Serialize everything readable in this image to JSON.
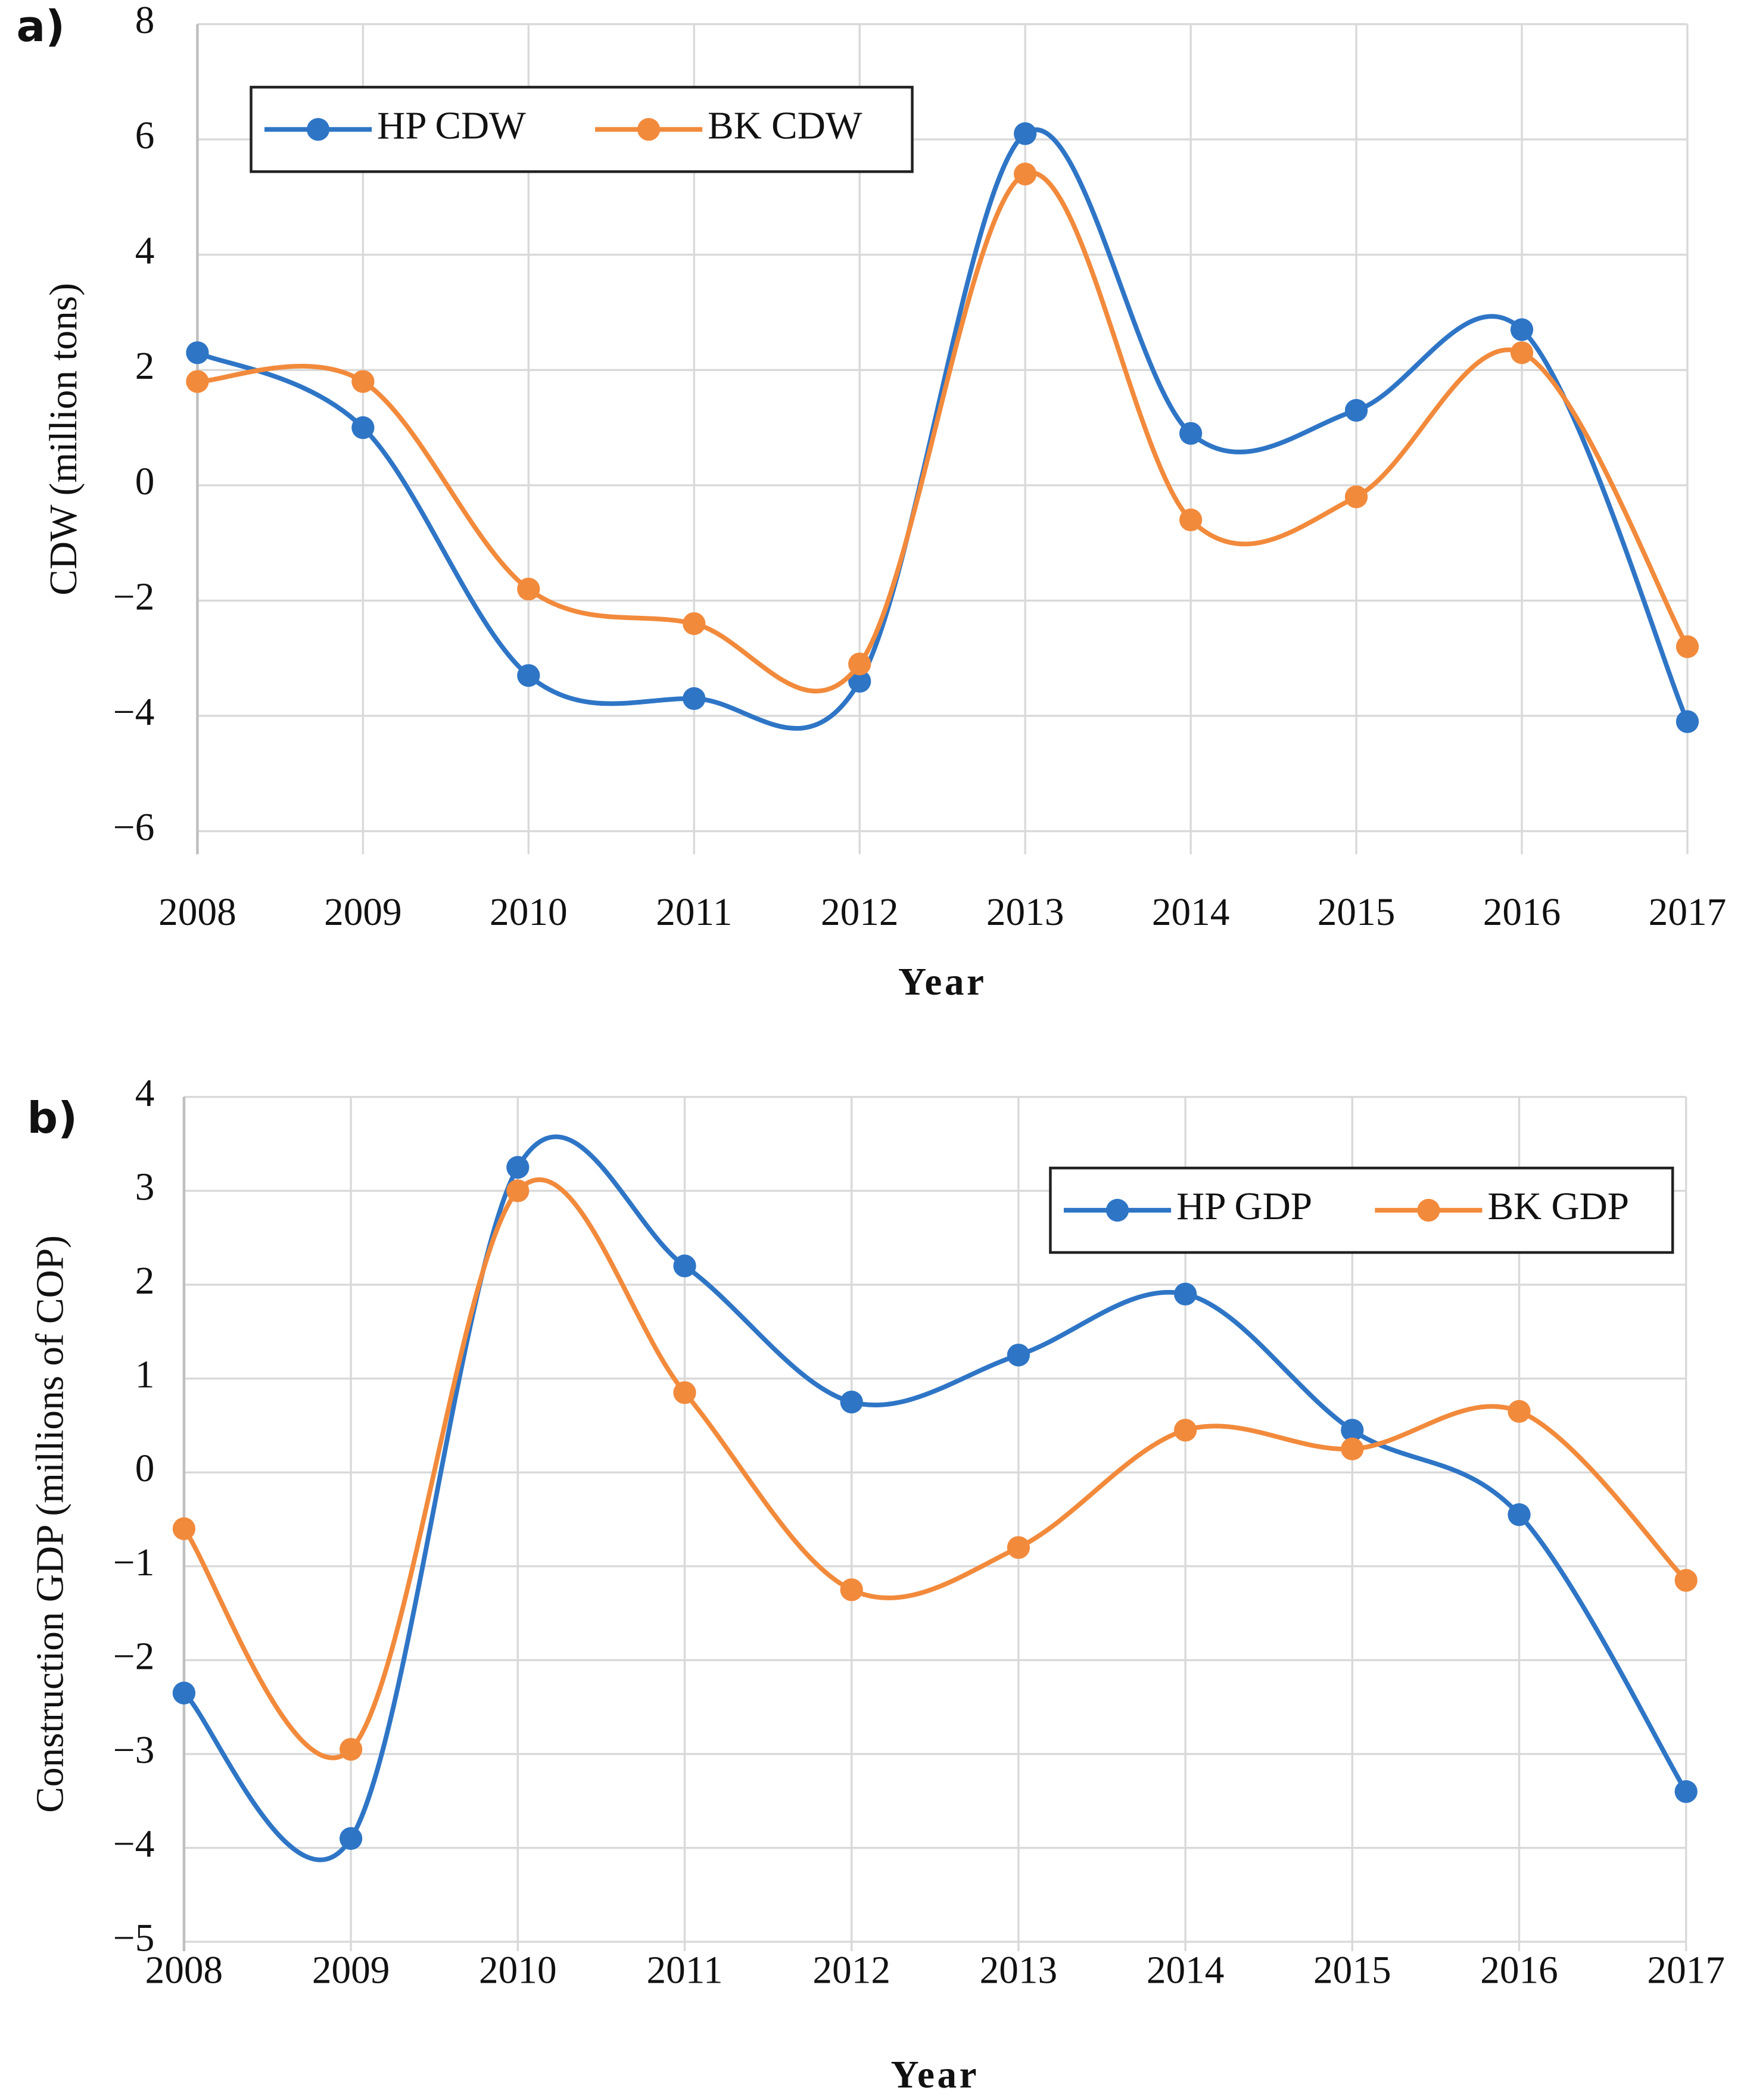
{
  "chart_data": [
    {
      "type": "line",
      "panel_label": "a)",
      "x_label": "Year",
      "y_label": "CDW (million tons)",
      "categories": [
        "2008",
        "2009",
        "2010",
        "2011",
        "2012",
        "2013",
        "2014",
        "2015",
        "2016",
        "2017"
      ],
      "series": [
        {
          "name": "HP CDW",
          "color": "#2e75c6",
          "values": [
            2.3,
            1.0,
            -3.3,
            -3.7,
            -3.4,
            6.1,
            0.9,
            1.3,
            2.7,
            -4.1
          ]
        },
        {
          "name": "BK CDW",
          "color": "#f28a3c",
          "values": [
            1.8,
            1.8,
            -1.8,
            -2.4,
            -3.1,
            5.4,
            -0.6,
            -0.2,
            2.3,
            -2.8
          ]
        }
      ],
      "ylim": [
        -6.4,
        8
      ],
      "yticks": [
        {
          "value": -6,
          "label": "−6"
        },
        {
          "value": -4,
          "label": "−4"
        },
        {
          "value": -2,
          "label": "−2"
        },
        0,
        2,
        4,
        6,
        8
      ],
      "grid": true,
      "legend": "top-left"
    },
    {
      "type": "line",
      "panel_label": "b)",
      "x_label": "Year",
      "y_label": "Construction GDP (millions of COP)",
      "categories": [
        "2008",
        "2009",
        "2010",
        "2011",
        "2012",
        "2013",
        "2014",
        "2015",
        "2016",
        "2017"
      ],
      "series": [
        {
          "name": "HP GDP",
          "color": "#2e75c6",
          "values": [
            -2.35,
            -3.9,
            3.25,
            2.2,
            0.75,
            1.25,
            1.9,
            0.45,
            -0.45,
            -3.4
          ]
        },
        {
          "name": "BK GDP",
          "color": "#f28a3c",
          "values": [
            -0.6,
            -2.95,
            3.0,
            0.85,
            -1.25,
            -0.8,
            0.45,
            0.25,
            0.65,
            -1.15
          ]
        }
      ],
      "ylim": [
        -5.1,
        4
      ],
      "yticks": [
        {
          "value": -5,
          "label": "−5"
        },
        {
          "value": -4,
          "label": "−4"
        },
        {
          "value": -3,
          "label": "−3"
        },
        {
          "value": -2,
          "label": "−2"
        },
        {
          "value": -1,
          "label": "−1"
        },
        0,
        1,
        2,
        3,
        4
      ],
      "grid": true,
      "legend": "top-right"
    }
  ]
}
